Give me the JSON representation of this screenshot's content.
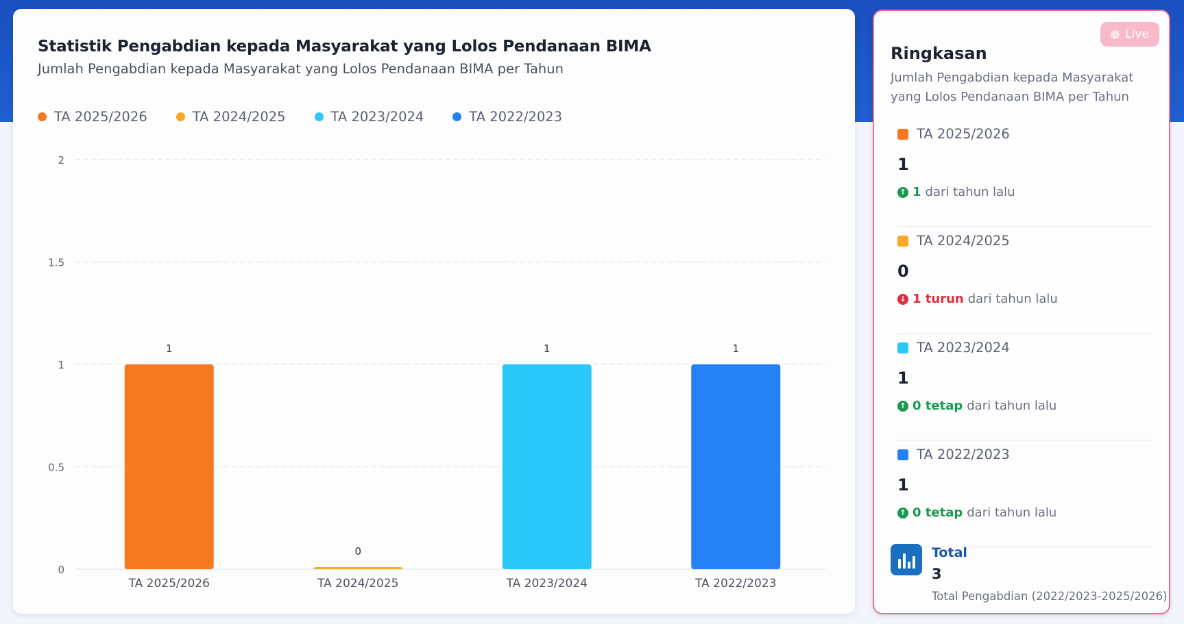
{
  "chart_card": {
    "title": "Statistik Pengabdian kepada Masyarakat yang Lolos Pendanaan BIMA",
    "subtitle": "Jumlah Pengabdian kepada Masyarakat yang Lolos Pendanaan BIMA per Tahun",
    "legend": [
      {
        "label": "TA 2025/2026",
        "color": "#f47920"
      },
      {
        "label": "TA 2024/2025",
        "color": "#f9a825"
      },
      {
        "label": "TA 2023/2024",
        "color": "#29c8f8"
      },
      {
        "label": "TA 2022/2023",
        "color": "#2381f5"
      }
    ]
  },
  "chart_data": {
    "type": "bar",
    "title": "Statistik Pengabdian kepada Masyarakat yang Lolos Pendanaan BIMA",
    "categories": [
      "TA 2025/2026",
      "TA 2024/2025",
      "TA 2023/2024",
      "TA 2022/2023"
    ],
    "values": [
      1,
      0,
      1,
      1
    ],
    "data_labels": [
      "1",
      "0",
      "1",
      "1"
    ],
    "colors": [
      "#f47920",
      "#f9a825",
      "#29c8f8",
      "#2381f5"
    ],
    "ylim": [
      0,
      2
    ],
    "yticks": [
      0,
      0.5,
      1,
      1.5,
      2
    ],
    "ytick_labels": [
      "0",
      "0.5",
      "1",
      "1.5",
      "2"
    ],
    "xlabel": "",
    "ylabel": "",
    "grid": true,
    "legend": "top-left"
  },
  "summary": {
    "live_label": "Live",
    "title": "Ringkasan",
    "description": "Jumlah Pengabdian kepada Masyarakat yang Lolos Pendanaan BIMA per Tahun",
    "items": [
      {
        "label": "TA 2025/2026",
        "color": "#f47920",
        "value": "1",
        "change_icon": "arrow-up-circle-icon",
        "change_main": "1",
        "change_rest": "dari tahun lalu",
        "change_color": "#1a9a50"
      },
      {
        "label": "TA 2024/2025",
        "color": "#f9a825",
        "value": "0",
        "change_icon": "arrow-down-circle-icon",
        "change_main": "1 turun",
        "change_rest": "dari tahun lalu",
        "change_color": "#e02d3c"
      },
      {
        "label": "TA 2023/2024",
        "color": "#29c8f8",
        "value": "1",
        "change_icon": "arrow-up-circle-icon",
        "change_main": "0 tetap",
        "change_rest": "dari tahun lalu",
        "change_color": "#1a9a50"
      },
      {
        "label": "TA 2022/2023",
        "color": "#2381f5",
        "value": "1",
        "change_icon": "arrow-up-circle-icon",
        "change_main": "0 tetap",
        "change_rest": "dari tahun lalu",
        "change_color": "#1a9a50"
      }
    ],
    "total": {
      "icon": "bar-chart-icon",
      "label": "Total",
      "value": "3",
      "description": "Total Pengabdian (2022/2023-2025/2026)"
    }
  }
}
